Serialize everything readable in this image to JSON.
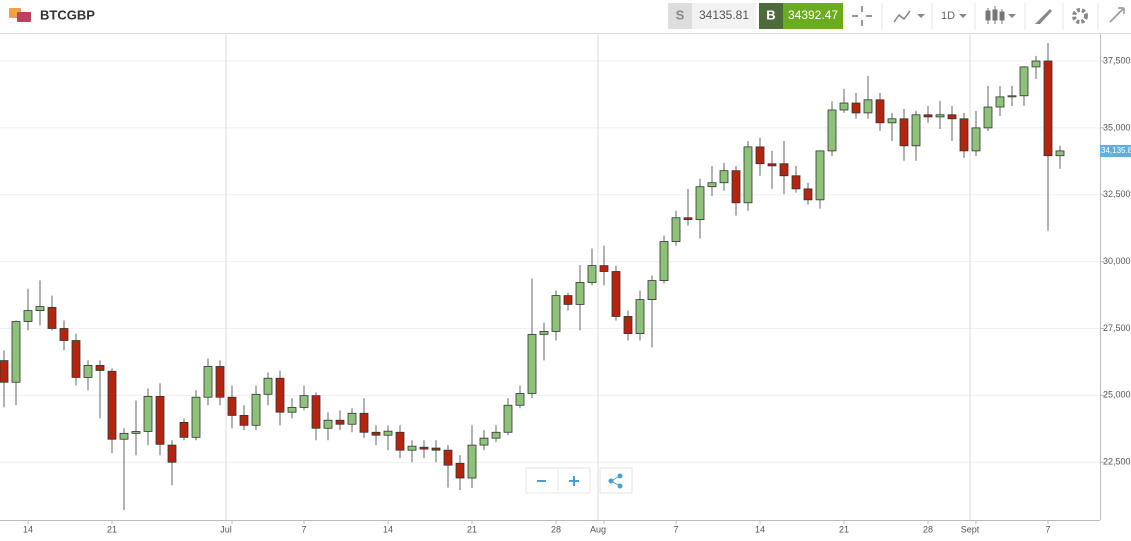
{
  "toolbar": {
    "symbol": "BTCGBP",
    "sell_label": "S",
    "sell_price": 34135.81,
    "buy_label": "B",
    "buy_price": 34392.47,
    "interval": "1D"
  },
  "chart_data": {
    "type": "candlestick",
    "categories": [
      null,
      null,
      "14",
      null,
      null,
      null,
      null,
      null,
      null,
      "21",
      null,
      null,
      null,
      null,
      null,
      null,
      null,
      null,
      null,
      "Jul",
      null,
      null,
      null,
      null,
      null,
      "7",
      null,
      null,
      null,
      null,
      null,
      null,
      "14",
      null,
      null,
      null,
      null,
      null,
      null,
      "21",
      null,
      null,
      null,
      null,
      null,
      null,
      "28",
      null,
      null,
      null,
      "Aug",
      null,
      null,
      null,
      null,
      null,
      "7",
      null,
      null,
      null,
      null,
      null,
      null,
      "14",
      null,
      null,
      null,
      null,
      null,
      null,
      "21",
      null,
      null,
      null,
      null,
      null,
      null,
      "28",
      null,
      null,
      null,
      "Sept",
      null,
      null,
      null,
      null,
      null,
      "7",
      null
    ],
    "open": [
      26300,
      25490,
      27760,
      28170,
      28290,
      27500,
      27050,
      25670,
      26120,
      25900,
      23360,
      23580,
      23650,
      24960,
      23140,
      23990,
      23430,
      24930,
      26080,
      24930,
      24250,
      23880,
      25040,
      25640,
      24370,
      24550,
      24990,
      23770,
      24070,
      23920,
      24330,
      23620,
      23510,
      23620,
      22950,
      23060,
      23030,
      22950,
      22460,
      21910,
      23140,
      23400,
      23620,
      24630,
      25070,
      27280,
      27390,
      28730,
      28400,
      29220,
      29850,
      29630,
      27950,
      27310,
      28580,
      29290,
      30750,
      31640,
      31570,
      32800,
      32950,
      33400,
      32200,
      34290,
      33660,
      33660,
      33210,
      32720,
      32310,
      34140,
      35670,
      35930,
      35560,
      36050,
      35190,
      35340,
      34330,
      35490,
      35410,
      35490,
      35340,
      34140,
      35000,
      35780,
      36160,
      36200,
      37280,
      37500,
      33960
    ],
    "high": [
      26680,
      27800,
      28990,
      29300,
      28730,
      27800,
      27310,
      26310,
      26310,
      26010,
      23770,
      24810,
      25260,
      25450,
      23320,
      24140,
      25190,
      26380,
      26310,
      25370,
      24630,
      25370,
      25860,
      25930,
      24890,
      25370,
      25110,
      24370,
      24440,
      24520,
      24890,
      23880,
      23880,
      23880,
      23320,
      23320,
      23320,
      23140,
      22760,
      23880,
      23700,
      23880,
      24890,
      25370,
      29370,
      27720,
      28920,
      28840,
      29870,
      30490,
      30600,
      29850,
      28170,
      28920,
      29480,
      30970,
      31900,
      32720,
      33100,
      33580,
      33690,
      33580,
      34510,
      34630,
      34140,
      34510,
      33580,
      32950,
      34140,
      35990,
      36460,
      36310,
      36940,
      36310,
      35560,
      35710,
      35640,
      35820,
      36010,
      35820,
      35560,
      35630,
      36570,
      36570,
      36570,
      37310,
      37690,
      38170,
      34330
    ],
    "low": [
      24550,
      24630,
      27430,
      27610,
      27430,
      26680,
      25370,
      25180,
      24140,
      22840,
      20710,
      22760,
      23140,
      22760,
      21640,
      23320,
      23320,
      24630,
      24630,
      23770,
      23700,
      23700,
      24630,
      23880,
      24140,
      24440,
      23320,
      23320,
      23700,
      23620,
      23400,
      23140,
      22950,
      22650,
      22500,
      22650,
      22500,
      21550,
      21460,
      21530,
      22950,
      23250,
      23510,
      24520,
      24890,
      26310,
      27050,
      28170,
      27430,
      29110,
      29110,
      27800,
      27050,
      27050,
      26790,
      29180,
      30600,
      31340,
      30860,
      32460,
      32650,
      31720,
      31900,
      33210,
      32720,
      32520,
      32580,
      32130,
      31980,
      33950,
      35560,
      35340,
      35340,
      34890,
      34510,
      33770,
      33770,
      35190,
      34960,
      34510,
      33880,
      33950,
      34890,
      35450,
      35820,
      35820,
      36830,
      31160,
      33470
    ],
    "close": [
      25490,
      27760,
      28170,
      28320,
      27500,
      27050,
      25670,
      26120,
      25930,
      23360,
      23580,
      23650,
      24960,
      23170,
      22500,
      23430,
      24930,
      26080,
      24930,
      24250,
      23880,
      25040,
      25640,
      24370,
      24550,
      24990,
      23770,
      24070,
      23920,
      24330,
      23620,
      23510,
      23660,
      22950,
      23100,
      22990,
      22950,
      22390,
      21910,
      23140,
      23400,
      23620,
      24630,
      25070,
      27280,
      27390,
      28730,
      28400,
      29220,
      29850,
      29630,
      27950,
      27310,
      28580,
      29290,
      30750,
      31640,
      31570,
      32800,
      32950,
      33400,
      32200,
      34290,
      33660,
      33580,
      33210,
      32720,
      32310,
      34140,
      35670,
      35930,
      35560,
      36050,
      35190,
      35340,
      34330,
      35490,
      35410,
      35490,
      35340,
      34140,
      35000,
      35780,
      36160,
      36200,
      37280,
      37500,
      33960,
      34140
    ],
    "up_color": "#8ec27a",
    "down_color": "#b3250f",
    "ylim": [
      20340,
      38510
    ],
    "yticks": [
      {
        "value": 22500,
        "label": "22,500."
      },
      {
        "value": 25000,
        "label": "25,000."
      },
      {
        "value": 27500,
        "label": "27,500."
      },
      {
        "value": 30000,
        "label": "30,000."
      },
      {
        "value": 32500,
        "label": "32,500."
      },
      {
        "value": 35000,
        "label": "35,000."
      },
      {
        "value": 37500,
        "label": "37,500."
      }
    ],
    "last_price": {
      "value": 34135.8,
      "label": "34,135.8"
    },
    "grid": true
  }
}
